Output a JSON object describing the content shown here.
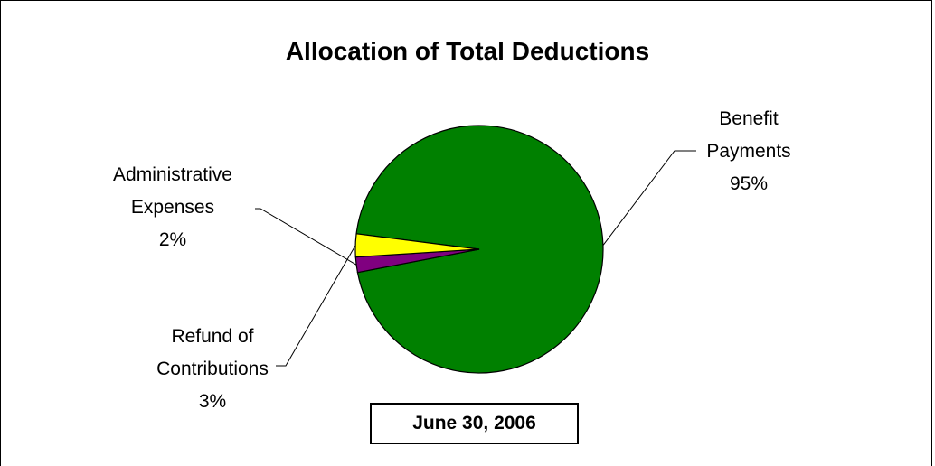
{
  "chart_data": {
    "type": "pie",
    "title": "Allocation of Total Deductions",
    "subtitle": "June 30, 2006",
    "slices": [
      {
        "label_lines": [
          "Benefit",
          "Payments"
        ],
        "pct_label": "95%",
        "value": 95,
        "color": "#008000"
      },
      {
        "label_lines": [
          "Administrative",
          "Expenses"
        ],
        "pct_label": "2%",
        "value": 2,
        "color": "#800080"
      },
      {
        "label_lines": [
          "Refund of",
          "Contributions"
        ],
        "pct_label": "3%",
        "value": 3,
        "color": "#ffff00"
      }
    ]
  }
}
